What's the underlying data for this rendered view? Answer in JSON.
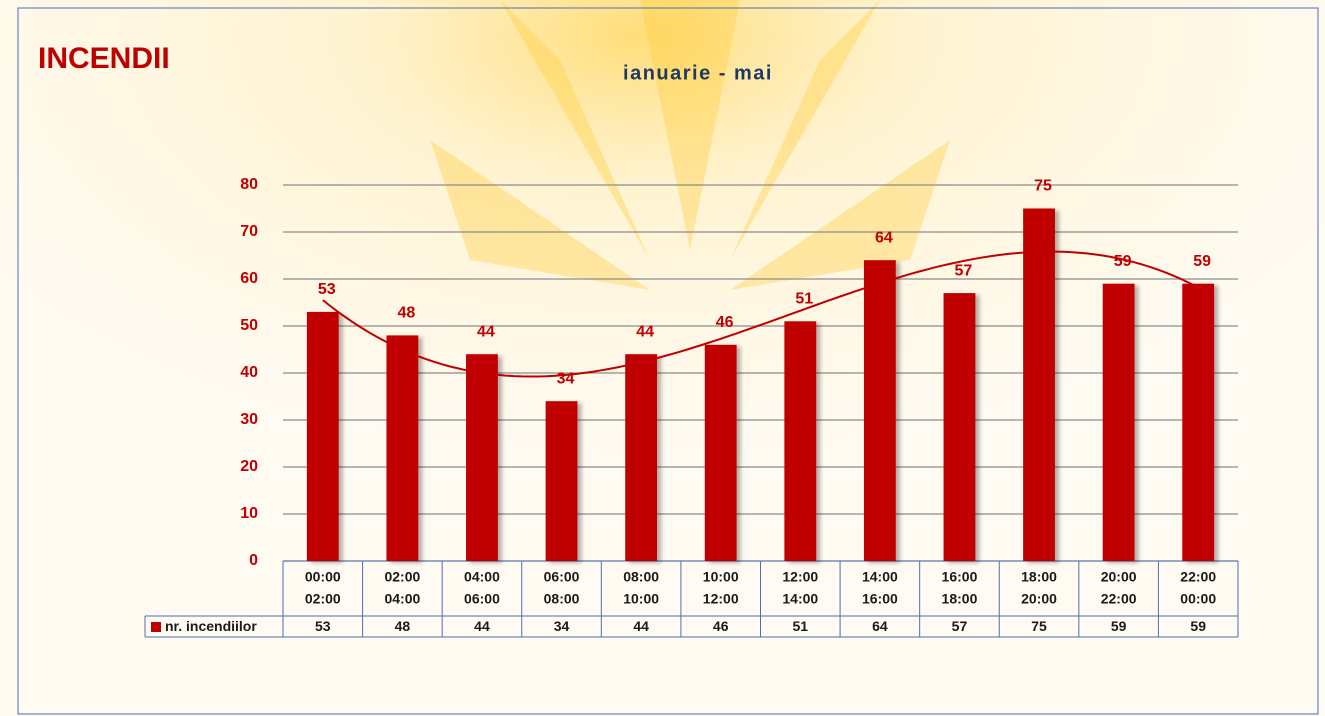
{
  "chart_data": {
    "type": "bar",
    "title": "INCENDII",
    "subtitle": "ianuarie - mai",
    "categories": [
      [
        "00:00",
        "02:00"
      ],
      [
        "02:00",
        "04:00"
      ],
      [
        "04:00",
        "06:00"
      ],
      [
        "06:00",
        "08:00"
      ],
      [
        "08:00",
        "10:00"
      ],
      [
        "10:00",
        "12:00"
      ],
      [
        "12:00",
        "14:00"
      ],
      [
        "14:00",
        "16:00"
      ],
      [
        "16:00",
        "18:00"
      ],
      [
        "18:00",
        "20:00"
      ],
      [
        "20:00",
        "22:00"
      ],
      [
        "22:00",
        "00:00"
      ]
    ],
    "series": [
      {
        "name": "nr. incendiilor",
        "color": "#c00000",
        "values": [
          53,
          48,
          44,
          34,
          44,
          46,
          51,
          64,
          57,
          75,
          59,
          59
        ]
      }
    ],
    "ylim": [
      0,
      80
    ],
    "yticks": [
      0,
      10,
      20,
      30,
      40,
      50,
      60,
      70,
      80
    ],
    "grid": true,
    "trendline": true,
    "data_table": true
  }
}
